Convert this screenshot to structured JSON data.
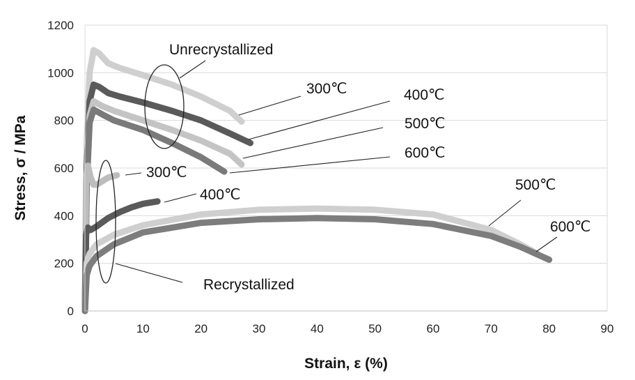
{
  "chart_data": {
    "type": "line",
    "xlabel": "Strain, ε  (%)",
    "ylabel": "Stress, σ / MPa",
    "xlim": [
      0,
      90
    ],
    "ylim": [
      0,
      1200
    ],
    "xticks": [
      "0",
      "10",
      "20",
      "30",
      "40",
      "50",
      "60",
      "70",
      "80",
      "90"
    ],
    "yticks": [
      "0",
      "200",
      "400",
      "600",
      "800",
      "1000",
      "1200"
    ],
    "grid": "horizontal",
    "series": [
      {
        "group": "Unrecrystallized",
        "color": "#cfcfcf",
        "x": [
          0,
          0.3,
          0.8,
          1.5,
          2.5,
          4,
          6,
          10,
          15,
          20,
          25,
          27
        ],
        "y": [
          0,
          700,
          1000,
          1095,
          1080,
          1040,
          1020,
          990,
          950,
          900,
          840,
          795
        ]
      },
      {
        "group": "Unrecrystallized",
        "color": "#5a5a5a",
        "x": [
          0,
          0.3,
          0.8,
          1.5,
          2.5,
          4,
          6,
          10,
          15,
          20,
          25,
          28.5
        ],
        "y": [
          0,
          600,
          880,
          950,
          940,
          915,
          900,
          875,
          840,
          800,
          745,
          705
        ]
      },
      {
        "group": "Unrecrystallized",
        "color": "#c4c4c4",
        "x": [
          0,
          0.3,
          0.8,
          1.5,
          3,
          5,
          10,
          15,
          20,
          25,
          27
        ],
        "y": [
          0,
          550,
          820,
          880,
          860,
          840,
          800,
          760,
          715,
          660,
          615
        ]
      },
      {
        "group": "Unrecrystallized",
        "color": "#7a7a7a",
        "x": [
          0,
          0.3,
          0.8,
          1.5,
          3,
          5,
          10,
          15,
          20,
          24
        ],
        "y": [
          0,
          520,
          790,
          845,
          825,
          800,
          760,
          705,
          645,
          585
        ]
      },
      {
        "group": "Recrystallized",
        "color": "#bdbdbd",
        "x": [
          0,
          0.2,
          0.5,
          1,
          1.5,
          2,
          3,
          4,
          5.5
        ],
        "y": [
          0,
          560,
          610,
          560,
          530,
          530,
          545,
          560,
          570
        ]
      },
      {
        "group": "Recrystallized",
        "color": "#5a5a5a",
        "x": [
          0,
          0.2,
          0.5,
          1,
          2,
          4,
          6,
          8,
          10,
          12.5
        ],
        "y": [
          0,
          320,
          350,
          340,
          355,
          390,
          415,
          435,
          450,
          460
        ]
      },
      {
        "group": "Recrystallized",
        "color": "#cfcfcf",
        "x": [
          0,
          0.3,
          0.8,
          2,
          5,
          10,
          20,
          30,
          40,
          50,
          60,
          70,
          75,
          78
        ],
        "y": [
          0,
          200,
          240,
          280,
          320,
          360,
          405,
          425,
          430,
          425,
          405,
          340,
          280,
          240
        ]
      },
      {
        "group": "Recrystallized",
        "color": "#7d7d7d",
        "x": [
          0,
          0.3,
          0.8,
          2,
          5,
          10,
          20,
          30,
          40,
          50,
          60,
          70,
          75,
          80
        ],
        "y": [
          0,
          150,
          190,
          230,
          280,
          330,
          370,
          385,
          390,
          385,
          365,
          315,
          270,
          215
        ]
      }
    ],
    "annotations": {
      "unrecrystallized": "Unrecrystallized",
      "recrystallized": "Recrystallized",
      "u300": "300℃",
      "u400": "400℃",
      "u500": "500℃",
      "u600": "600℃",
      "r300": "300℃",
      "r400": "400℃",
      "r500": "500℃",
      "r600": "600℃"
    }
  }
}
